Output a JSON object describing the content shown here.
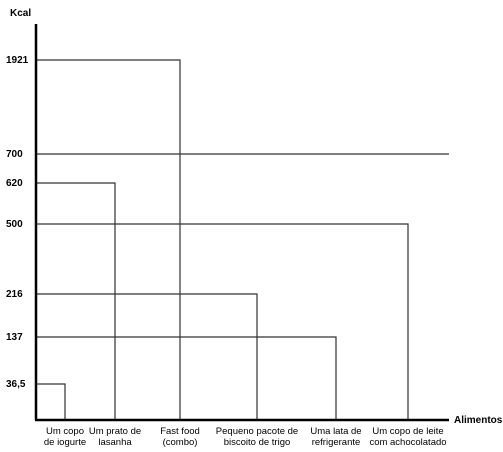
{
  "chart_data": {
    "type": "bar",
    "ylabel": "Kcal",
    "xlabel": "Alimentos",
    "categories": [
      [
        "Um copo",
        "de iogurte"
      ],
      [
        "Um prato de",
        "lasanha"
      ],
      [
        "Fast food",
        "(combo)"
      ],
      [
        "Pequeno pacote de",
        "biscoito de trigo"
      ],
      [
        "Uma lata de",
        "refrigerante"
      ],
      [
        "Um copo de leite",
        "com achocolatado"
      ]
    ],
    "values": [
      36.5,
      620,
      1921,
      216,
      137,
      500
    ],
    "value_labels": [
      "36,5",
      "620",
      "1921",
      "216",
      "137",
      "500"
    ],
    "reference_line": {
      "value": 700,
      "label": "700"
    },
    "grid": false
  }
}
